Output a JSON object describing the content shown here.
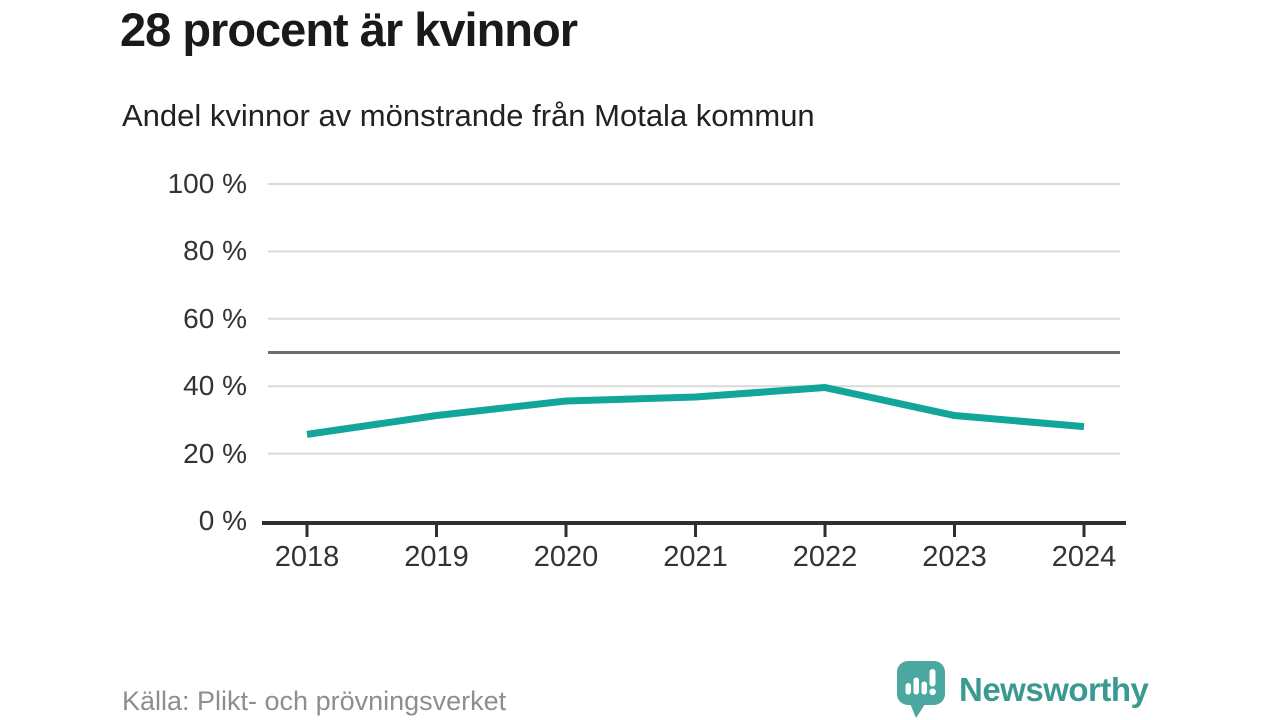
{
  "header": {
    "title": "28 procent är kvinnor",
    "subtitle": "Andel kvinnor av mönstrande från Motala kommun"
  },
  "footer": {
    "source": "Källa: Plikt- och prövningsverket",
    "brand": "Newsworthy"
  },
  "colors": {
    "line": "#12a69b",
    "grid": "#d9d9d9",
    "reference_line": "#6e6e6e",
    "axis": "#2f2f2f",
    "logo_icon": "#4ba8a1",
    "logo_text": "#3a9a92"
  },
  "chart_data": {
    "type": "line",
    "title": "28 procent är kvinnor",
    "subtitle": "Andel kvinnor av mönstrande från Motala kommun",
    "categories": [
      "2018",
      "2019",
      "2020",
      "2021",
      "2022",
      "2023",
      "2024"
    ],
    "series": [
      {
        "name": "Andel kvinnor av mönstrande",
        "values": [
          25.7,
          31.3,
          35.6,
          36.8,
          39.6,
          31.3,
          28
        ]
      }
    ],
    "unit": "%",
    "xlabel": "",
    "ylabel": "",
    "ylim": [
      0,
      100
    ],
    "yticks": [
      0,
      20,
      40,
      60,
      80,
      100
    ],
    "ytick_labels": [
      "0 %",
      "20 %",
      "40 %",
      "60 %",
      "80 %",
      "100 %"
    ],
    "reference_line": 50,
    "grid": true,
    "legend": false,
    "source": "Källa: Plikt- och prövningsverket"
  }
}
